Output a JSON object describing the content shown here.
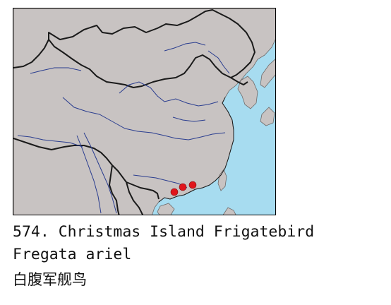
{
  "map": {
    "sea_color": "#a7dcf0",
    "land_color": "#c8c3c2",
    "border_color": "#1a1a1a",
    "river_color": "#2a3d8f",
    "marker_color": "#e0151b",
    "marker_count": 3,
    "region": "China and neighboring East Asia",
    "markers": [
      {
        "location": "Western Guangdong coast"
      },
      {
        "location": "Pearl River estuary"
      },
      {
        "location": "Eastern Guangdong coast"
      }
    ]
  },
  "caption": {
    "title": "574. Christmas Island Frigatebird",
    "latin_name": "Fregata ariel",
    "chinese_name": "白腹军舰鸟"
  }
}
